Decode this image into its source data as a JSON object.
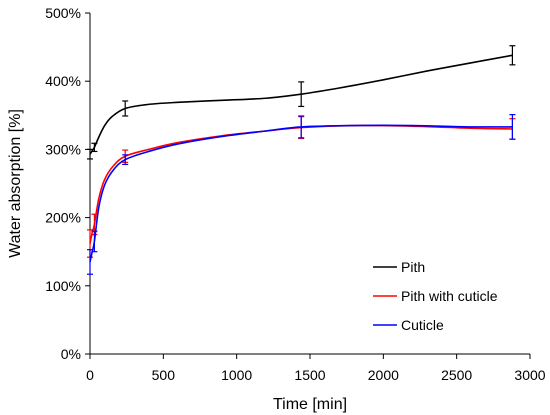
{
  "chart_data": {
    "type": "line",
    "title": "",
    "xlabel": "Time [min]",
    "ylabel": "Water absorption [%]",
    "xlim": [
      0,
      3000
    ],
    "ylim": [
      0,
      500
    ],
    "x_ticks": [
      "0",
      "500",
      "1000",
      "1500",
      "2000",
      "2500",
      "3000"
    ],
    "y_ticks": [
      "0%",
      "100%",
      "200%",
      "300%",
      "400%",
      "500%"
    ],
    "grid": false,
    "legend_position": "bottom-right",
    "series": [
      {
        "name": "Pith",
        "color": "#000000",
        "points": [
          [
            0,
            293
          ],
          [
            30,
            303
          ],
          [
            240,
            360
          ],
          [
            1440,
            381
          ],
          [
            2880,
            438
          ]
        ],
        "errors": [
          7,
          6,
          11,
          18,
          14
        ],
        "curve": [
          [
            0,
            293
          ],
          [
            15,
            298
          ],
          [
            30,
            303
          ],
          [
            60,
            318
          ],
          [
            100,
            335
          ],
          [
            150,
            348
          ],
          [
            240,
            360
          ],
          [
            400,
            366
          ],
          [
            600,
            369
          ],
          [
            900,
            372
          ],
          [
            1200,
            375
          ],
          [
            1440,
            381
          ],
          [
            1700,
            390
          ],
          [
            2000,
            402
          ],
          [
            2300,
            415
          ],
          [
            2600,
            427
          ],
          [
            2880,
            438
          ]
        ]
      },
      {
        "name": "Pith with cuticle",
        "color": "#ff0000",
        "points": [
          [
            0,
            162
          ],
          [
            30,
            190
          ],
          [
            240,
            290
          ],
          [
            1440,
            332
          ],
          [
            2880,
            330
          ]
        ],
        "errors": [
          20,
          15,
          9,
          16,
          15
        ],
        "curve": [
          [
            0,
            162
          ],
          [
            15,
            178
          ],
          [
            30,
            190
          ],
          [
            60,
            228
          ],
          [
            100,
            256
          ],
          [
            160,
            276
          ],
          [
            240,
            290
          ],
          [
            400,
            300
          ],
          [
            600,
            310
          ],
          [
            900,
            320
          ],
          [
            1200,
            327
          ],
          [
            1440,
            332
          ],
          [
            1800,
            335
          ],
          [
            2200,
            334
          ],
          [
            2600,
            331
          ],
          [
            2880,
            330
          ]
        ]
      },
      {
        "name": "Cuticle",
        "color": "#0000ff",
        "points": [
          [
            0,
            135
          ],
          [
            30,
            165
          ],
          [
            240,
            285
          ],
          [
            1440,
            333
          ],
          [
            2880,
            333
          ]
        ],
        "errors": [
          18,
          15,
          7,
          16,
          18
        ],
        "curve": [
          [
            0,
            135
          ],
          [
            15,
            150
          ],
          [
            30,
            165
          ],
          [
            60,
            215
          ],
          [
            100,
            248
          ],
          [
            160,
            270
          ],
          [
            240,
            285
          ],
          [
            400,
            297
          ],
          [
            600,
            308
          ],
          [
            900,
            319
          ],
          [
            1200,
            327
          ],
          [
            1440,
            333
          ],
          [
            1800,
            335
          ],
          [
            2200,
            335
          ],
          [
            2600,
            333
          ],
          [
            2880,
            333
          ]
        ]
      }
    ]
  }
}
